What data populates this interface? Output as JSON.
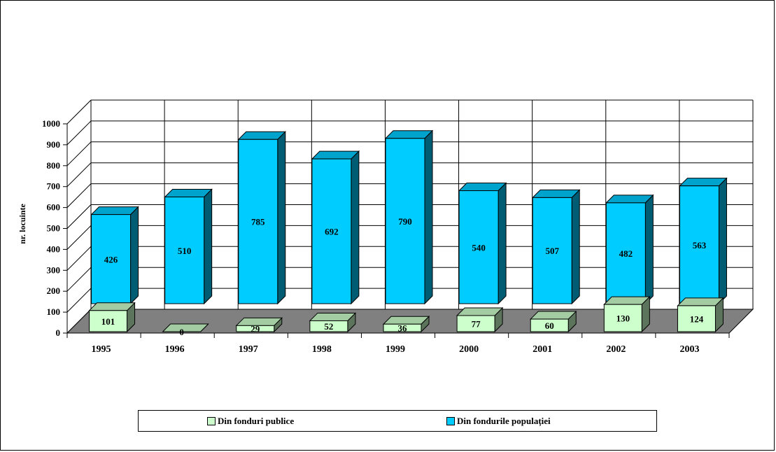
{
  "chart_data": {
    "type": "bar",
    "stacked_3d": true,
    "categories": [
      "1995",
      "1996",
      "1997",
      "1998",
      "1999",
      "2000",
      "2001",
      "2002",
      "2003"
    ],
    "series": [
      {
        "name": "Din fonduri publice",
        "values": [
          101,
          0,
          29,
          52,
          36,
          77,
          60,
          130,
          124
        ],
        "color": "#ccffcc"
      },
      {
        "name": "Din fondurile populației",
        "values": [
          426,
          510,
          785,
          692,
          790,
          540,
          507,
          482,
          563
        ],
        "color": "#00ccff"
      }
    ],
    "title": "",
    "xlabel": "",
    "ylabel": "nr. locuinte",
    "ylim": [
      0,
      1000
    ],
    "yticks": [
      "0",
      "100",
      "200",
      "300",
      "400",
      "500",
      "600",
      "700",
      "800",
      "900",
      "1000"
    ],
    "grid": true,
    "legend_position": "bottom"
  }
}
